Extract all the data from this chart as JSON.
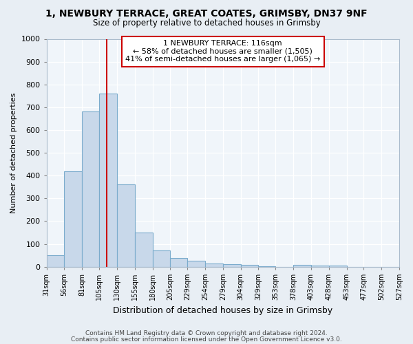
{
  "title": "1, NEWBURY TERRACE, GREAT COATES, GRIMSBY, DN37 9NF",
  "subtitle": "Size of property relative to detached houses in Grimsby",
  "xlabel": "Distribution of detached houses by size in Grimsby",
  "ylabel": "Number of detached properties",
  "bar_edges": [
    31,
    56,
    81,
    105,
    130,
    155,
    180,
    205,
    229,
    254,
    279,
    304,
    329,
    353,
    378,
    403,
    428,
    453,
    477,
    502,
    527
  ],
  "bar_heights": [
    50,
    420,
    680,
    760,
    360,
    150,
    72,
    38,
    27,
    15,
    12,
    8,
    3,
    0,
    8,
    5,
    5,
    0,
    0,
    0
  ],
  "bar_color": "#c8d8ea",
  "bar_edge_color": "#7aabcc",
  "vline_x": 116,
  "vline_color": "#cc0000",
  "annotation_box_color": "#cc0000",
  "annotation_text_line1": "1 NEWBURY TERRACE: 116sqm",
  "annotation_text_line2": "← 58% of detached houses are smaller (1,505)",
  "annotation_text_line3": "41% of semi-detached houses are larger (1,065) →",
  "ylim": [
    0,
    1000
  ],
  "yticks": [
    0,
    100,
    200,
    300,
    400,
    500,
    600,
    700,
    800,
    900,
    1000
  ],
  "tick_labels": [
    "31sqm",
    "56sqm",
    "81sqm",
    "105sqm",
    "130sqm",
    "155sqm",
    "180sqm",
    "205sqm",
    "229sqm",
    "254sqm",
    "279sqm",
    "304sqm",
    "329sqm",
    "353sqm",
    "378sqm",
    "403sqm",
    "428sqm",
    "453sqm",
    "477sqm",
    "502sqm",
    "527sqm"
  ],
  "footer_line1": "Contains HM Land Registry data © Crown copyright and database right 2024.",
  "footer_line2": "Contains public sector information licensed under the Open Government Licence v3.0.",
  "bg_color": "#e8eef4",
  "plot_bg_color": "#f0f5fa"
}
